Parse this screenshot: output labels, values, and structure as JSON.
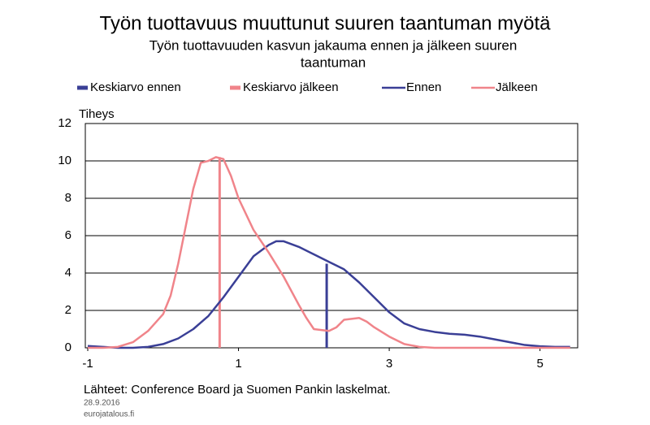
{
  "chart_data": {
    "type": "line",
    "title": "Työn tuottavuus muuttunut suuren taantuman myötä",
    "subtitle_lines": [
      "Työn tuottavuuden kasvun jakauma ennen ja jälkeen suuren",
      "taantuman"
    ],
    "y_label": "Tiheys",
    "source": "Lähteet: Conference Board ja Suomen Pankin laskelmat.",
    "date": "28.9.2016",
    "site": "eurojatalous.fi",
    "xlim": [
      -1,
      5.5
    ],
    "xticks": [
      -1,
      1,
      3,
      5
    ],
    "ylim": [
      0,
      12
    ],
    "yticks": [
      0,
      2,
      4,
      6,
      8,
      10,
      12
    ],
    "grid": true,
    "series": [
      {
        "name": "Keskiarvo ennen",
        "color": "#3a3f96",
        "kind": "mean",
        "x": [
          2.17,
          2.17
        ],
        "values": [
          0,
          4.5
        ]
      },
      {
        "name": "Keskiarvo jälkeen",
        "color": "#f0848a",
        "kind": "mean",
        "x": [
          0.75,
          0.75
        ],
        "values": [
          0,
          10.2
        ]
      },
      {
        "name": "Ennen",
        "color": "#3a3f96",
        "kind": "density",
        "x": [
          -1,
          -0.8,
          -0.6,
          -0.4,
          -0.2,
          0,
          0.2,
          0.4,
          0.6,
          0.8,
          1.0,
          1.2,
          1.4,
          1.5,
          1.6,
          1.8,
          2.0,
          2.2,
          2.4,
          2.6,
          2.8,
          3.0,
          3.2,
          3.4,
          3.6,
          3.8,
          4.0,
          4.2,
          4.4,
          4.6,
          4.8,
          5.0,
          5.2,
          5.4
        ],
        "values": [
          0.1,
          0.05,
          0,
          0,
          0.05,
          0.2,
          0.5,
          1.0,
          1.7,
          2.7,
          3.8,
          4.9,
          5.5,
          5.7,
          5.7,
          5.4,
          5.0,
          4.6,
          4.2,
          3.5,
          2.7,
          1.9,
          1.3,
          1.0,
          0.85,
          0.75,
          0.7,
          0.6,
          0.45,
          0.3,
          0.15,
          0.08,
          0.05,
          0.05
        ]
      },
      {
        "name": "Jälkeen",
        "color": "#f0848a",
        "kind": "density",
        "x": [
          -1,
          -0.8,
          -0.6,
          -0.4,
          -0.2,
          0,
          0.1,
          0.2,
          0.3,
          0.4,
          0.5,
          0.6,
          0.7,
          0.8,
          0.9,
          1.0,
          1.2,
          1.4,
          1.6,
          1.8,
          1.9,
          2.0,
          2.2,
          2.3,
          2.4,
          2.6,
          2.7,
          2.8,
          3.0,
          3.2,
          3.4,
          3.6,
          4.0,
          5.0,
          5.4
        ],
        "values": [
          0,
          0,
          0.05,
          0.3,
          0.9,
          1.8,
          2.8,
          4.5,
          6.5,
          8.5,
          9.9,
          10.0,
          10.2,
          10.1,
          9.2,
          8.0,
          6.3,
          5.1,
          3.8,
          2.3,
          1.6,
          1.0,
          0.9,
          1.1,
          1.5,
          1.6,
          1.4,
          1.1,
          0.6,
          0.2,
          0.05,
          0,
          0,
          0,
          0
        ]
      }
    ]
  }
}
